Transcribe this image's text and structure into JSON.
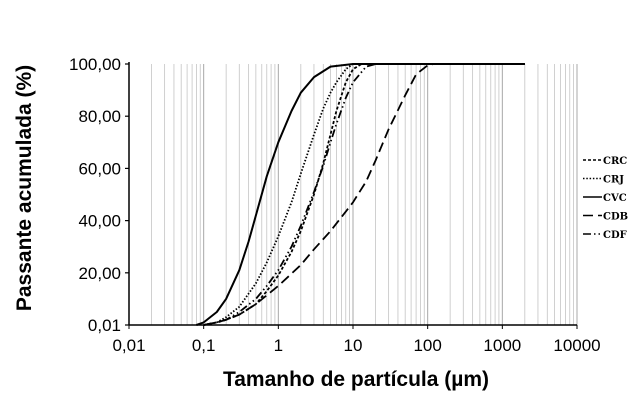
{
  "chart_data": {
    "type": "line",
    "xlabel": "Tamanho de partícula (µm)",
    "ylabel": "Passante acumulada (%)",
    "x_scale": "log",
    "xlim": [
      0.01,
      10000
    ],
    "ylim": [
      0.01,
      100
    ],
    "x_ticks": [
      "0,01",
      "0,1",
      "1",
      "10",
      "100",
      "1000",
      "10000"
    ],
    "y_ticks": [
      "0,01",
      "20,00",
      "40,00",
      "60,00",
      "80,00",
      "100,00"
    ],
    "grid": "vertical log minor and major",
    "legend": "right",
    "series": [
      {
        "name": "CRC",
        "dash": "short-dash",
        "points": [
          [
            0.1,
            0.01
          ],
          [
            0.15,
            1
          ],
          [
            0.2,
            2
          ],
          [
            0.3,
            4
          ],
          [
            0.5,
            8
          ],
          [
            0.7,
            13
          ],
          [
            1,
            19
          ],
          [
            1.5,
            28
          ],
          [
            2,
            36
          ],
          [
            3,
            50
          ],
          [
            4,
            62
          ],
          [
            5,
            73
          ],
          [
            6,
            82
          ],
          [
            8,
            93
          ],
          [
            10,
            98
          ],
          [
            13,
            100
          ],
          [
            20,
            100
          ],
          [
            2000,
            100
          ]
        ]
      },
      {
        "name": "CRJ",
        "dash": "dotted",
        "points": [
          [
            0.1,
            0.01
          ],
          [
            0.15,
            1
          ],
          [
            0.2,
            3
          ],
          [
            0.3,
            7
          ],
          [
            0.5,
            16
          ],
          [
            0.7,
            24
          ],
          [
            1,
            34
          ],
          [
            1.5,
            47
          ],
          [
            2,
            58
          ],
          [
            3,
            73
          ],
          [
            4,
            83
          ],
          [
            5,
            89
          ],
          [
            6,
            93
          ],
          [
            8,
            98
          ],
          [
            10,
            100
          ],
          [
            20,
            100
          ],
          [
            2000,
            100
          ]
        ]
      },
      {
        "name": "CVC",
        "dash": "solid",
        "points": [
          [
            0.08,
            0.01
          ],
          [
            0.1,
            1
          ],
          [
            0.15,
            5
          ],
          [
            0.2,
            10
          ],
          [
            0.3,
            21
          ],
          [
            0.4,
            32
          ],
          [
            0.5,
            42
          ],
          [
            0.7,
            57
          ],
          [
            1,
            70
          ],
          [
            1.5,
            82
          ],
          [
            2,
            89
          ],
          [
            3,
            95
          ],
          [
            5,
            99
          ],
          [
            10,
            100
          ],
          [
            2000,
            100
          ]
        ]
      },
      {
        "name": "CDB",
        "dash": "long-dash",
        "points": [
          [
            0.1,
            0.01
          ],
          [
            0.15,
            1
          ],
          [
            0.2,
            2
          ],
          [
            0.3,
            4
          ],
          [
            0.5,
            8
          ],
          [
            1,
            15
          ],
          [
            2,
            23
          ],
          [
            3,
            29
          ],
          [
            5,
            36
          ],
          [
            10,
            47
          ],
          [
            15,
            55
          ],
          [
            20,
            63
          ],
          [
            30,
            75
          ],
          [
            50,
            88
          ],
          [
            70,
            96
          ],
          [
            100,
            99.5
          ],
          [
            120,
            100
          ],
          [
            2000,
            100
          ]
        ]
      },
      {
        "name": "CDF",
        "dash": "dash-dot-dot",
        "points": [
          [
            0.1,
            0.01
          ],
          [
            0.15,
            1
          ],
          [
            0.2,
            2
          ],
          [
            0.3,
            5
          ],
          [
            0.5,
            10
          ],
          [
            0.7,
            15
          ],
          [
            1,
            21
          ],
          [
            1.5,
            30
          ],
          [
            2,
            38
          ],
          [
            3,
            51
          ],
          [
            4,
            61
          ],
          [
            5,
            70
          ],
          [
            6,
            77
          ],
          [
            8,
            87
          ],
          [
            10,
            93
          ],
          [
            15,
            99
          ],
          [
            20,
            100
          ],
          [
            2000,
            100
          ]
        ]
      }
    ]
  }
}
